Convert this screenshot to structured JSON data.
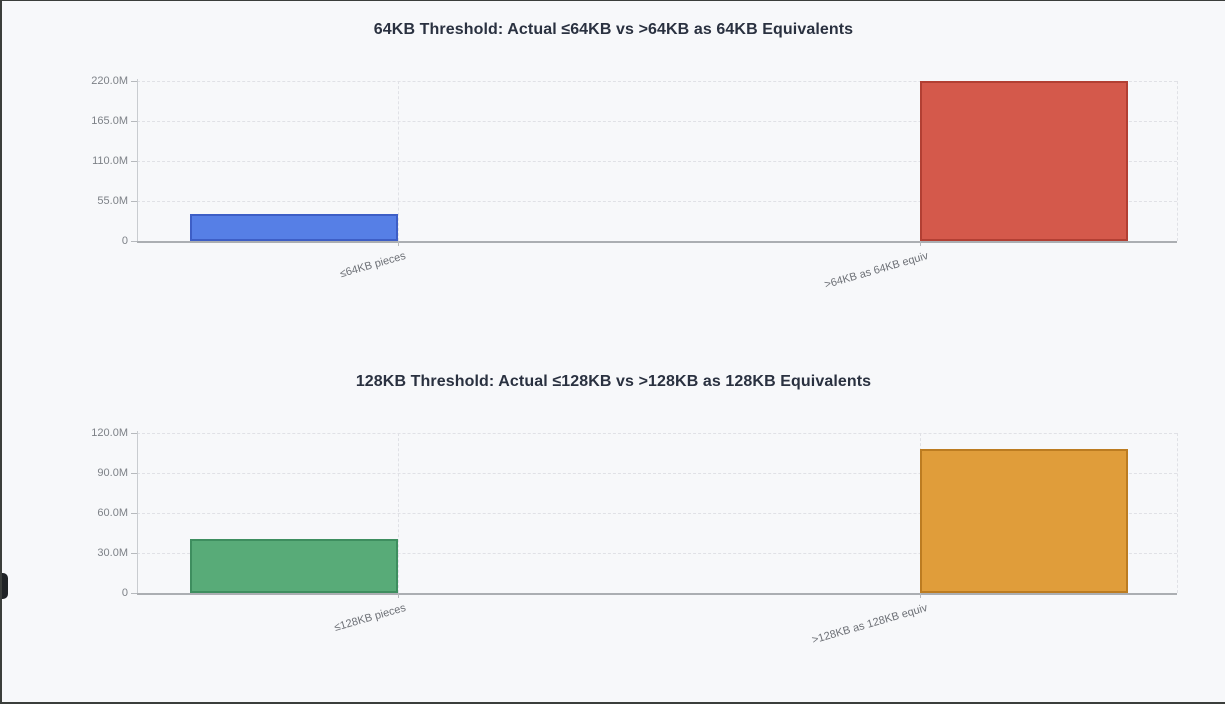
{
  "page": {
    "background": "#f7f8fa",
    "frame_color": "#3b3e3b",
    "handle_color": "#202326"
  },
  "chart_data": [
    {
      "type": "bar",
      "title": "64KB Threshold: Actual ≤64KB vs >64KB as 64KB Equivalents",
      "categories": [
        "≤64KB pieces",
        ">64KB as 64KB equiv"
      ],
      "values": [
        37500000,
        220000000
      ],
      "ylim": [
        0,
        220000000
      ],
      "yticks": [
        {
          "value": 0,
          "label": "0"
        },
        {
          "value": 55000000,
          "label": "55.0M"
        },
        {
          "value": 110000000,
          "label": "110.0M"
        },
        {
          "value": 165000000,
          "label": "165.0M"
        },
        {
          "value": 220000000,
          "label": "220.0M"
        }
      ],
      "bar_colors": [
        {
          "fill": "#567fe6",
          "border": "#3d5ec6"
        },
        {
          "fill": "#d4594b",
          "border": "#b23f33"
        }
      ],
      "xlabel": "",
      "ylabel": "",
      "grid": true,
      "legend": "none"
    },
    {
      "type": "bar",
      "title": "128KB Threshold: Actual ≤128KB vs >128KB as 128KB Equivalents",
      "categories": [
        "≤128KB pieces",
        ">128KB as 128KB equiv"
      ],
      "values": [
        40500000,
        108000000
      ],
      "ylim": [
        0,
        120000000
      ],
      "yticks": [
        {
          "value": 0,
          "label": "0"
        },
        {
          "value": 30000000,
          "label": "30.0M"
        },
        {
          "value": 60000000,
          "label": "60.0M"
        },
        {
          "value": 90000000,
          "label": "90.0M"
        },
        {
          "value": 120000000,
          "label": "120.0M"
        }
      ],
      "bar_colors": [
        {
          "fill": "#58ab78",
          "border": "#3e8e5f"
        },
        {
          "fill": "#e09d3a",
          "border": "#bc7c21"
        }
      ],
      "xlabel": "",
      "ylabel": "",
      "grid": true,
      "legend": "none"
    }
  ]
}
